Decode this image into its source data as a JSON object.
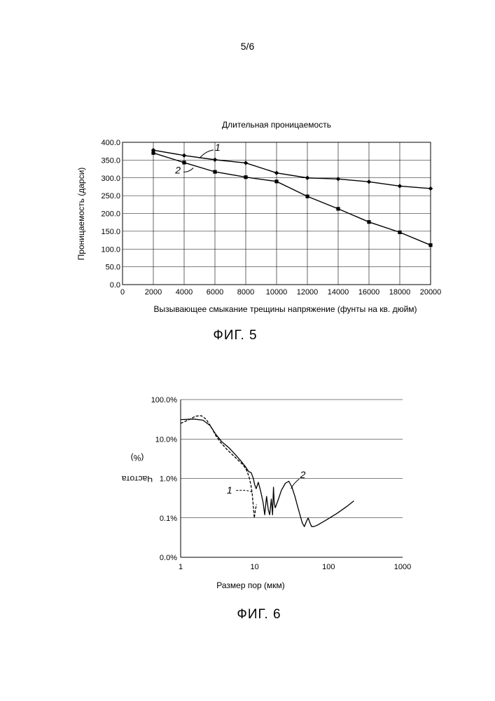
{
  "page_number": "5/6",
  "chart_data": [
    {
      "type": "line",
      "title": "Длительная проницаемость",
      "xlabel": "Вызывающее смыкание трещины напряжение (фунты на кв. дюйм)",
      "ylabel": "Проницаемость (дарси)",
      "caption": "ФИГ. 5",
      "x_ticks": [
        "0",
        "2000",
        "4000",
        "6000",
        "8000",
        "10000",
        "12000",
        "14000",
        "16000",
        "18000",
        "20000"
      ],
      "y_ticks": [
        "0.0",
        "50.0",
        "100.0",
        "150.0",
        "200.0",
        "250.0",
        "300.0",
        "350.0",
        "400.0"
      ],
      "xlim": [
        0,
        20000
      ],
      "ylim": [
        0,
        400
      ],
      "grid": true,
      "legend": "none",
      "series": [
        {
          "name": "1",
          "marker": "diamond",
          "x": [
            2000,
            4000,
            6000,
            8000,
            10000,
            12000,
            14000,
            16000,
            18000,
            20000
          ],
          "y": [
            378,
            363,
            351,
            342,
            314,
            300,
            297,
            289,
            277,
            270
          ]
        },
        {
          "name": "2",
          "marker": "square",
          "x": [
            2000,
            4000,
            6000,
            8000,
            10000,
            12000,
            14000,
            16000,
            18000,
            20000
          ],
          "y": [
            370,
            343,
            317,
            302,
            290,
            248,
            213,
            176,
            147,
            111
          ]
        }
      ]
    },
    {
      "type": "line",
      "xlabel": "Размер пор (мкм)",
      "ylabel": "Частота",
      "ylabel_unit": "(%)",
      "caption": "ФИГ. 6",
      "x_scale": "log",
      "y_scale": "log",
      "x_ticks": [
        "1",
        "10",
        "100",
        "1000"
      ],
      "y_ticks": [
        "0.0%",
        "0.1%",
        "1.0%",
        "10.0%",
        "100.0%"
      ],
      "xlim": [
        1,
        1000
      ],
      "grid": true,
      "legend": "none",
      "series": [
        {
          "name": "1",
          "style": "dashed",
          "x": [
            1.0,
            1.3,
            1.6,
            1.9,
            2.2,
            2.6,
            3.0,
            3.5,
            4.2,
            5.0,
            6.0,
            7.0,
            7.8,
            8.4,
            8.9,
            9.3,
            9.6,
            9.9,
            10.2,
            10.6
          ],
          "y": [
            25,
            31,
            38,
            39,
            32,
            20,
            12,
            8,
            5.5,
            4.0,
            2.9,
            2.2,
            1.6,
            1.1,
            0.7,
            0.4,
            0.2,
            0.1,
            0.15,
            0.22
          ]
        },
        {
          "name": "2",
          "style": "solid",
          "x": [
            1.0,
            1.5,
            2.0,
            2.5,
            3.0,
            3.6,
            4.5,
            5.5,
            6.5,
            7.5,
            8.3,
            9.0,
            9.6,
            10.0,
            10.5,
            11.2,
            12.0,
            13.0,
            13.7,
            14.5,
            15.3,
            16.0,
            16.8,
            17.5,
            18.0,
            18.4,
            19.0,
            19.8,
            21.0,
            23.0,
            26.0,
            29.0,
            32.0,
            35.0,
            38.0,
            41.0,
            44.0,
            47.0,
            50.0,
            53.0,
            56.0,
            59.0,
            63.0,
            70.0,
            90.0,
            130.0,
            180.0,
            220.0
          ],
          "y": [
            31,
            32,
            30,
            22,
            13,
            8.5,
            6.0,
            4.0,
            2.8,
            2.0,
            1.5,
            1.4,
            1.0,
            0.7,
            0.55,
            0.8,
            0.5,
            0.25,
            0.12,
            0.35,
            0.16,
            0.12,
            0.3,
            0.12,
            0.6,
            0.25,
            0.18,
            0.22,
            0.3,
            0.5,
            0.75,
            0.85,
            0.6,
            0.35,
            0.2,
            0.12,
            0.075,
            0.06,
            0.08,
            0.1,
            0.075,
            0.06,
            0.06,
            0.065,
            0.085,
            0.13,
            0.2,
            0.27
          ]
        }
      ]
    }
  ]
}
